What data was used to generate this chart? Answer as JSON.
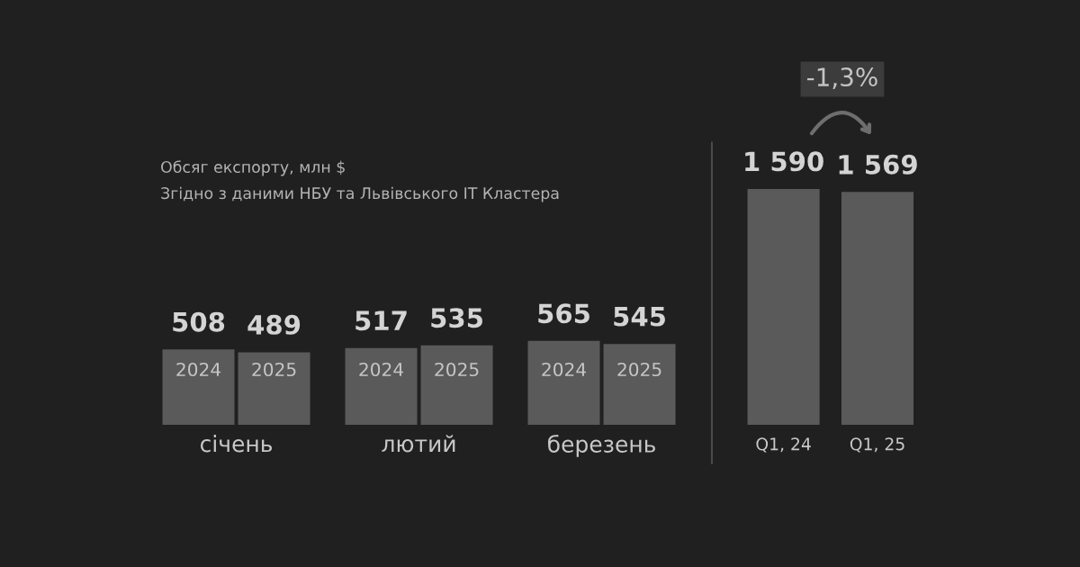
{
  "chart_data": [
    {
      "type": "bar",
      "title": "Обсяг експорту, млн $",
      "subtitle": "Згідно з даними НБУ та Львівського ІТ Кластера",
      "categories": [
        "січень",
        "лютий",
        "березень"
      ],
      "series": [
        {
          "name": "2024",
          "color": "#5a5a5a",
          "values": [
            508,
            517,
            565
          ]
        },
        {
          "name": "2025",
          "color": "#5a5a5a",
          "values": [
            489,
            535,
            545
          ]
        }
      ],
      "data_labels": true,
      "tick_labels": "x"
    },
    {
      "type": "bar",
      "categories": [
        "Q1, 24",
        "Q1, 25"
      ],
      "values": [
        1590,
        1569
      ],
      "color": "#5a5a5a",
      "value_labels": [
        "1 590",
        "1 569"
      ],
      "tick_labels": "x",
      "annotations": [
        "-1,3%"
      ]
    }
  ]
}
